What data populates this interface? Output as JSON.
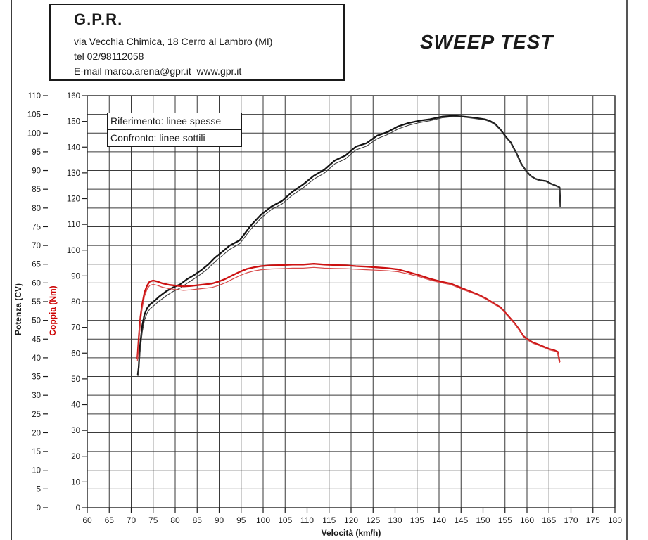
{
  "header": {
    "company": "G.P.R.",
    "address": "via Vecchia Chimica, 18 Cerro al Lambro (MI)",
    "phone": "tel 02/98112058",
    "email": "E-mail marco.arena@gpr.it  www.gpr.it"
  },
  "title": "SWEEP TEST",
  "legend": {
    "reference_label": "Riferimento: linee spesse",
    "comparison_label": "Confronto: linee sottili"
  },
  "chart_data": {
    "type": "line",
    "title": "SWEEP TEST",
    "xlabel": "Velocità (km/h)",
    "x_range": [
      60,
      180
    ],
    "x_ticks": [
      60,
      65,
      70,
      75,
      80,
      85,
      90,
      95,
      100,
      105,
      110,
      115,
      120,
      125,
      130,
      135,
      140,
      145,
      150,
      155,
      160,
      165,
      170,
      175,
      180
    ],
    "grid": {
      "x_step_kmh": 5,
      "y_step_cv": 5,
      "color": "#3a3a3a"
    },
    "axes": {
      "power": {
        "label": "Potenza (CV)",
        "color": "#1a1a1a",
        "range": [
          0,
          110
        ],
        "ticks": [
          0,
          5,
          10,
          15,
          20,
          25,
          30,
          35,
          40,
          45,
          50,
          55,
          60,
          65,
          70,
          75,
          80,
          85,
          90,
          95,
          100,
          105,
          110
        ]
      },
      "torque": {
        "label": "Coppia (Nm)",
        "color": "#cc0000",
        "range": [
          0,
          160
        ],
        "ticks": [
          0,
          10,
          20,
          30,
          40,
          50,
          60,
          70,
          80,
          90,
          100,
          110,
          120,
          130,
          140,
          150,
          160
        ]
      }
    },
    "series": [
      {
        "name": "potenza-riferimento",
        "axis": "power",
        "color": "#141414",
        "width": 2.3,
        "points": [
          [
            71.5,
            35.5
          ],
          [
            71.7,
            37.4
          ],
          [
            72.0,
            43.0
          ],
          [
            72.5,
            48.5
          ],
          [
            73.0,
            51.5
          ],
          [
            73.6,
            53.2
          ],
          [
            74.2,
            54.2
          ],
          [
            75.0,
            54.9
          ],
          [
            76.3,
            56.3
          ],
          [
            78.0,
            57.8
          ],
          [
            79.5,
            58.8
          ],
          [
            81.1,
            59.6
          ],
          [
            82.7,
            61.0
          ],
          [
            84.3,
            62.1
          ],
          [
            85.9,
            63.4
          ],
          [
            87.5,
            64.9
          ],
          [
            89.1,
            66.8
          ],
          [
            90.7,
            68.3
          ],
          [
            92.3,
            69.9
          ],
          [
            94.7,
            71.4
          ],
          [
            97.1,
            75.2
          ],
          [
            99.5,
            78.2
          ],
          [
            101.9,
            80.4
          ],
          [
            104.3,
            81.9
          ],
          [
            106.7,
            84.4
          ],
          [
            109.1,
            86.3
          ],
          [
            111.5,
            88.6
          ],
          [
            113.9,
            90.2
          ],
          [
            116.3,
            92.7
          ],
          [
            118.7,
            94.0
          ],
          [
            121.1,
            96.4
          ],
          [
            123.5,
            97.3
          ],
          [
            125.9,
            99.3
          ],
          [
            128.3,
            100.3
          ],
          [
            130.7,
            101.8
          ],
          [
            133.1,
            102.7
          ],
          [
            135.5,
            103.3
          ],
          [
            137.9,
            103.7
          ],
          [
            140.8,
            104.4
          ],
          [
            143.2,
            104.6
          ],
          [
            145.6,
            104.4
          ],
          [
            148.0,
            104.1
          ],
          [
            150.4,
            103.7
          ],
          [
            151.5,
            103.3
          ],
          [
            152.8,
            102.4
          ],
          [
            153.9,
            101.0
          ],
          [
            155.2,
            99.0
          ],
          [
            156.3,
            97.5
          ],
          [
            157.6,
            94.6
          ],
          [
            158.7,
            91.8
          ],
          [
            159.8,
            89.9
          ],
          [
            160.8,
            88.6
          ],
          [
            161.9,
            87.8
          ],
          [
            163.0,
            87.4
          ],
          [
            164.3,
            87.2
          ],
          [
            165.4,
            86.5
          ],
          [
            166.7,
            85.9
          ],
          [
            167.4,
            85.5
          ],
          [
            167.5,
            83.0
          ],
          [
            167.6,
            80.4
          ]
        ]
      },
      {
        "name": "potenza-confronto",
        "axis": "power",
        "color": "#3d3d3d",
        "width": 1.1,
        "points": [
          [
            71.5,
            35.0
          ],
          [
            71.7,
            36.5
          ],
          [
            72.0,
            41.5
          ],
          [
            72.5,
            46.8
          ],
          [
            73.0,
            50.0
          ],
          [
            73.6,
            51.9
          ],
          [
            74.2,
            53.0
          ],
          [
            75.0,
            53.8
          ],
          [
            76.3,
            55.1
          ],
          [
            78.0,
            56.6
          ],
          [
            79.5,
            57.7
          ],
          [
            81.1,
            58.6
          ],
          [
            82.7,
            59.9
          ],
          [
            84.3,
            61.1
          ],
          [
            85.9,
            62.4
          ],
          [
            87.5,
            63.9
          ],
          [
            89.1,
            65.7
          ],
          [
            90.7,
            67.3
          ],
          [
            92.3,
            68.9
          ],
          [
            94.7,
            70.5
          ],
          [
            97.1,
            74.2
          ],
          [
            99.5,
            77.3
          ],
          [
            101.9,
            79.6
          ],
          [
            104.3,
            81.1
          ],
          [
            106.7,
            83.5
          ],
          [
            109.1,
            85.4
          ],
          [
            111.5,
            87.7
          ],
          [
            113.9,
            89.3
          ],
          [
            116.3,
            91.8
          ],
          [
            118.7,
            93.1
          ],
          [
            121.1,
            95.5
          ],
          [
            123.5,
            96.5
          ],
          [
            125.9,
            98.5
          ],
          [
            128.3,
            99.6
          ],
          [
            130.7,
            101.1
          ],
          [
            133.1,
            102.1
          ],
          [
            135.5,
            102.8
          ],
          [
            137.9,
            103.3
          ],
          [
            140.8,
            104.1
          ],
          [
            143.2,
            104.4
          ],
          [
            145.6,
            104.3
          ],
          [
            148.0,
            103.9
          ],
          [
            150.4,
            103.5
          ],
          [
            151.5,
            103.1
          ],
          [
            152.8,
            102.2
          ],
          [
            153.9,
            100.8
          ],
          [
            155.2,
            98.8
          ],
          [
            156.3,
            97.3
          ],
          [
            157.6,
            94.5
          ],
          [
            158.7,
            91.7
          ],
          [
            159.8,
            89.8
          ],
          [
            160.8,
            88.5
          ],
          [
            161.9,
            87.7
          ],
          [
            163.0,
            87.3
          ],
          [
            164.3,
            87.1
          ],
          [
            165.4,
            86.4
          ],
          [
            166.7,
            85.8
          ],
          [
            167.4,
            85.4
          ],
          [
            167.6,
            80.3
          ]
        ]
      },
      {
        "name": "coppia-riferimento",
        "axis": "torque",
        "color": "#cc1111",
        "width": 2.3,
        "points": [
          [
            71.4,
            58.0
          ],
          [
            71.6,
            63.0
          ],
          [
            71.8,
            68.0
          ],
          [
            72.1,
            74.0
          ],
          [
            72.5,
            79.0
          ],
          [
            73.0,
            83.5
          ],
          [
            73.6,
            86.2
          ],
          [
            74.2,
            87.8
          ],
          [
            75.0,
            88.2
          ],
          [
            75.8,
            87.9
          ],
          [
            77.1,
            87.1
          ],
          [
            78.7,
            86.5
          ],
          [
            80.3,
            86.2
          ],
          [
            81.9,
            85.9
          ],
          [
            83.5,
            86.1
          ],
          [
            85.1,
            86.4
          ],
          [
            86.7,
            86.7
          ],
          [
            88.3,
            87.0
          ],
          [
            89.9,
            87.8
          ],
          [
            91.5,
            88.9
          ],
          [
            93.1,
            90.3
          ],
          [
            94.7,
            91.6
          ],
          [
            96.3,
            92.7
          ],
          [
            97.9,
            93.3
          ],
          [
            99.5,
            93.8
          ],
          [
            101.9,
            94.1
          ],
          [
            104.3,
            94.2
          ],
          [
            106.7,
            94.4
          ],
          [
            109.1,
            94.4
          ],
          [
            111.5,
            94.7
          ],
          [
            113.9,
            94.4
          ],
          [
            116.3,
            94.2
          ],
          [
            118.7,
            94.1
          ],
          [
            121.1,
            93.8
          ],
          [
            123.5,
            93.6
          ],
          [
            125.9,
            93.3
          ],
          [
            128.3,
            93.0
          ],
          [
            130.7,
            92.5
          ],
          [
            133.1,
            91.4
          ],
          [
            135.5,
            90.3
          ],
          [
            137.9,
            88.9
          ],
          [
            140.3,
            87.8
          ],
          [
            142.7,
            87.0
          ],
          [
            145.1,
            85.3
          ],
          [
            147.5,
            83.7
          ],
          [
            149.1,
            82.6
          ],
          [
            150.7,
            81.2
          ],
          [
            152.3,
            79.5
          ],
          [
            153.9,
            77.9
          ],
          [
            155.5,
            74.9
          ],
          [
            157.1,
            71.8
          ],
          [
            158.2,
            69.3
          ],
          [
            159.2,
            66.6
          ],
          [
            160.3,
            65.2
          ],
          [
            161.4,
            64.1
          ],
          [
            162.7,
            63.3
          ],
          [
            163.8,
            62.5
          ],
          [
            165.1,
            61.6
          ],
          [
            166.2,
            61.1
          ],
          [
            167.0,
            60.5
          ],
          [
            167.2,
            58.5
          ],
          [
            167.4,
            56.7
          ]
        ]
      },
      {
        "name": "coppia-confronto",
        "axis": "torque",
        "color": "#d84a4a",
        "width": 1.2,
        "points": [
          [
            71.4,
            57.0
          ],
          [
            71.6,
            61.0
          ],
          [
            71.8,
            66.0
          ],
          [
            72.1,
            72.0
          ],
          [
            72.5,
            77.5
          ],
          [
            73.0,
            82.0
          ],
          [
            73.6,
            84.8
          ],
          [
            74.2,
            86.3
          ],
          [
            75.0,
            86.7
          ],
          [
            75.8,
            86.4
          ],
          [
            77.1,
            85.6
          ],
          [
            78.7,
            85.0
          ],
          [
            80.3,
            84.7
          ],
          [
            81.9,
            84.4
          ],
          [
            83.5,
            84.6
          ],
          [
            85.1,
            84.9
          ],
          [
            86.7,
            85.2
          ],
          [
            88.3,
            85.5
          ],
          [
            89.9,
            86.3
          ],
          [
            91.5,
            87.4
          ],
          [
            93.1,
            88.8
          ],
          [
            94.7,
            90.1
          ],
          [
            96.3,
            91.2
          ],
          [
            97.9,
            91.9
          ],
          [
            99.5,
            92.4
          ],
          [
            101.9,
            92.7
          ],
          [
            104.3,
            92.8
          ],
          [
            106.7,
            93.0
          ],
          [
            109.1,
            93.0
          ],
          [
            111.5,
            93.3
          ],
          [
            113.9,
            93.0
          ],
          [
            116.3,
            92.9
          ],
          [
            118.7,
            92.8
          ],
          [
            121.1,
            92.6
          ],
          [
            123.5,
            92.4
          ],
          [
            125.9,
            92.2
          ],
          [
            128.3,
            92.0
          ],
          [
            130.7,
            91.6
          ],
          [
            133.1,
            90.7
          ],
          [
            135.5,
            89.7
          ],
          [
            137.9,
            88.4
          ],
          [
            140.3,
            87.4
          ],
          [
            142.7,
            86.6
          ],
          [
            145.1,
            84.9
          ],
          [
            147.5,
            83.4
          ],
          [
            149.1,
            82.3
          ],
          [
            150.7,
            80.9
          ],
          [
            152.3,
            79.2
          ],
          [
            153.9,
            77.6
          ],
          [
            155.5,
            74.6
          ],
          [
            157.1,
            71.5
          ],
          [
            158.2,
            69.0
          ],
          [
            159.2,
            66.3
          ],
          [
            160.3,
            64.9
          ],
          [
            161.4,
            63.8
          ],
          [
            162.7,
            63.0
          ],
          [
            163.8,
            62.2
          ],
          [
            165.1,
            61.3
          ],
          [
            166.2,
            60.8
          ],
          [
            167.0,
            60.2
          ],
          [
            167.4,
            56.4
          ]
        ]
      }
    ]
  }
}
